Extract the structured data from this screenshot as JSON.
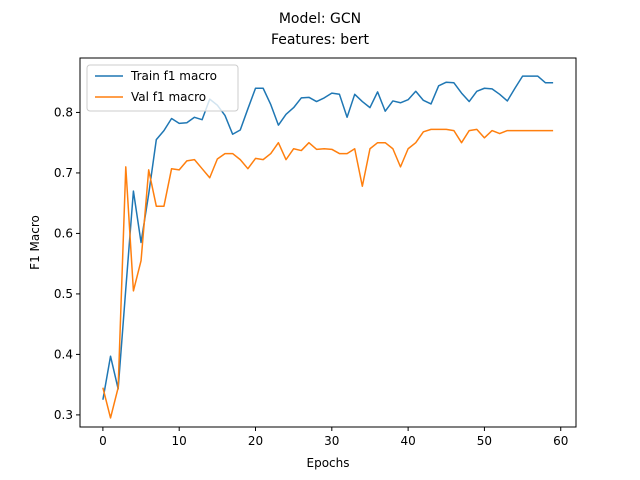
{
  "chart_data": {
    "type": "line",
    "title": [
      "Model: GCN",
      "Features: bert"
    ],
    "xlabel": "Epochs",
    "ylabel": "F1 Macro",
    "xlim": [
      -3,
      62
    ],
    "ylim": [
      0.28,
      0.89
    ],
    "xticks": [
      0,
      10,
      20,
      30,
      40,
      50,
      60
    ],
    "yticks": [
      0.3,
      0.4,
      0.5,
      0.6,
      0.7,
      0.8
    ],
    "grid": false,
    "legend_position": "top-left",
    "x": [
      0,
      1,
      2,
      3,
      4,
      5,
      6,
      7,
      8,
      9,
      10,
      11,
      12,
      13,
      14,
      15,
      16,
      17,
      18,
      19,
      20,
      21,
      22,
      23,
      24,
      25,
      26,
      27,
      28,
      29,
      30,
      31,
      32,
      33,
      34,
      35,
      36,
      37,
      38,
      39,
      40,
      41,
      42,
      43,
      44,
      45,
      46,
      47,
      48,
      49,
      50,
      51,
      52,
      53,
      54,
      55,
      56,
      57,
      58,
      59
    ],
    "series": [
      {
        "name": "Train f1 macro",
        "color": "#1f77b4",
        "values": [
          0.325,
          0.397,
          0.343,
          0.508,
          0.67,
          0.585,
          0.665,
          0.755,
          0.77,
          0.79,
          0.782,
          0.783,
          0.792,
          0.788,
          0.822,
          0.812,
          0.795,
          0.764,
          0.771,
          0.806,
          0.84,
          0.84,
          0.813,
          0.779,
          0.797,
          0.808,
          0.824,
          0.825,
          0.818,
          0.824,
          0.832,
          0.83,
          0.792,
          0.83,
          0.818,
          0.808,
          0.834,
          0.802,
          0.819,
          0.816,
          0.821,
          0.835,
          0.82,
          0.814,
          0.844,
          0.85,
          0.849,
          0.832,
          0.818,
          0.835,
          0.84,
          0.839,
          0.83,
          0.819,
          0.84,
          0.86,
          0.86,
          0.86,
          0.849,
          0.849
        ]
      },
      {
        "name": "Val f1 macro",
        "color": "#ff7f0e",
        "values": [
          0.345,
          0.295,
          0.345,
          0.71,
          0.505,
          0.555,
          0.705,
          0.645,
          0.645,
          0.707,
          0.705,
          0.72,
          0.722,
          0.707,
          0.692,
          0.723,
          0.732,
          0.732,
          0.722,
          0.707,
          0.724,
          0.722,
          0.732,
          0.75,
          0.722,
          0.74,
          0.737,
          0.75,
          0.739,
          0.74,
          0.739,
          0.732,
          0.732,
          0.74,
          0.678,
          0.74,
          0.75,
          0.75,
          0.74,
          0.71,
          0.74,
          0.75,
          0.768,
          0.772,
          0.772,
          0.772,
          0.77,
          0.75,
          0.77,
          0.772,
          0.758,
          0.77,
          0.765,
          0.77,
          0.77,
          0.77,
          0.77,
          0.77,
          0.77,
          0.77
        ]
      }
    ]
  }
}
